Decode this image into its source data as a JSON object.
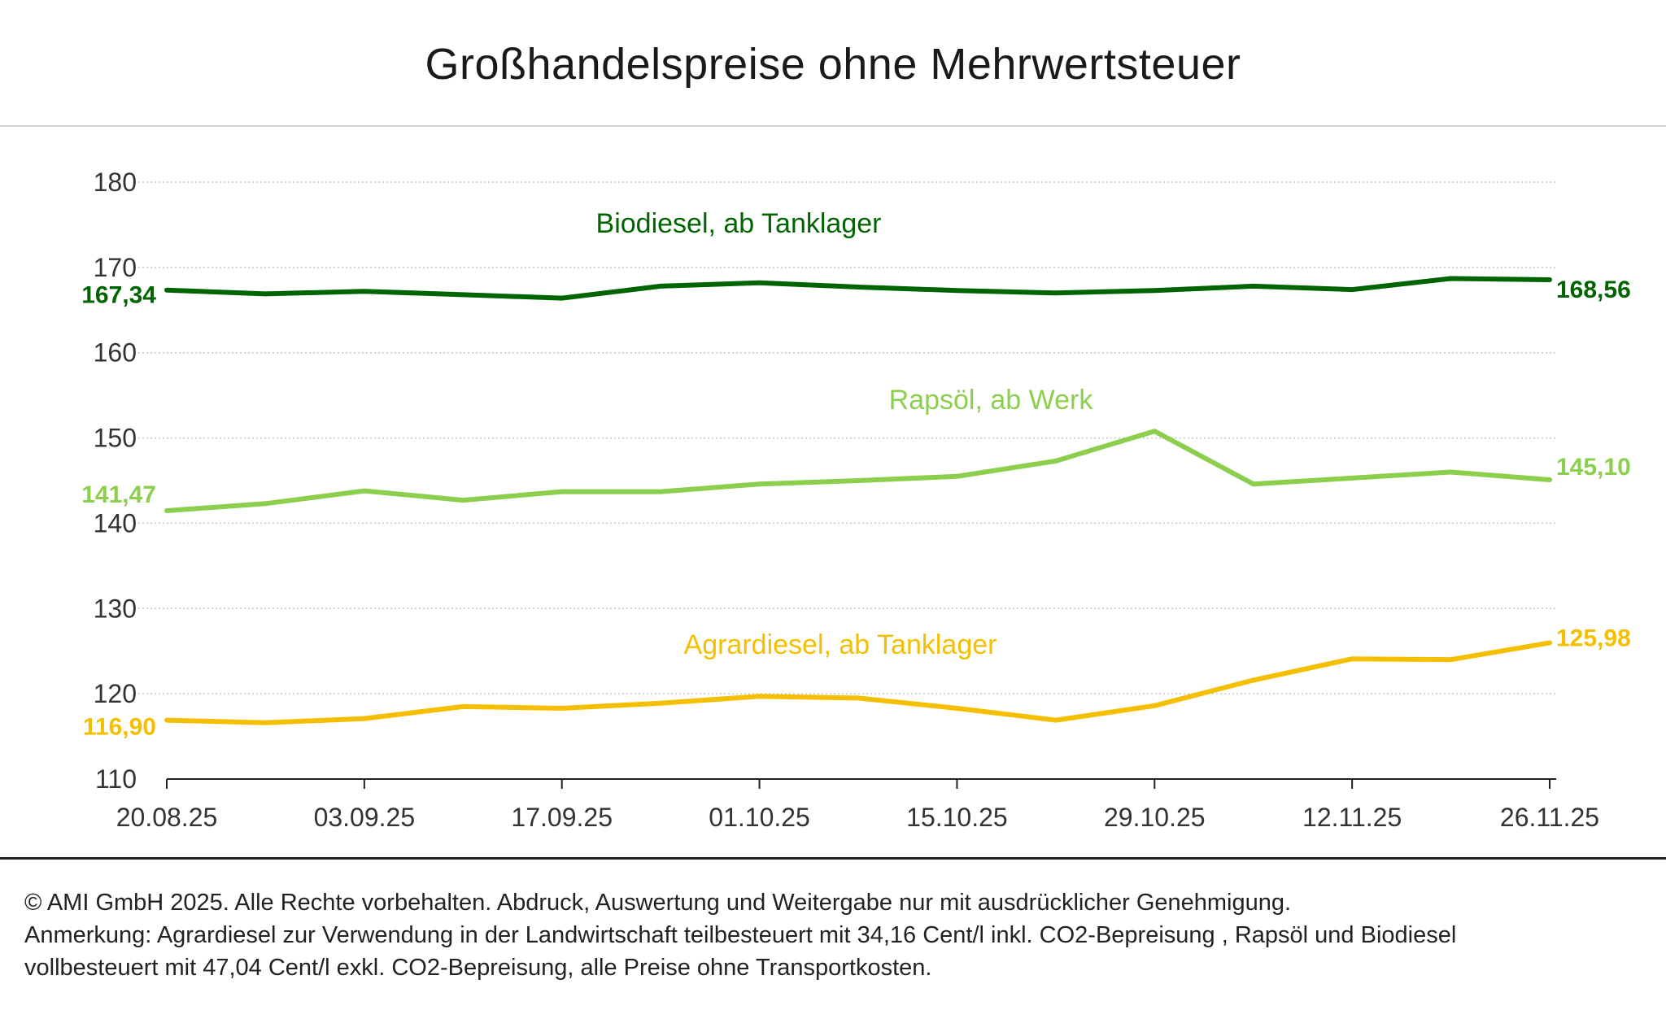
{
  "title": "Großhandelspreise ohne Mehrwertsteuer",
  "chart_data": {
    "type": "line",
    "title": "Großhandelspreise ohne Mehrwertsteuer",
    "xlabel": "",
    "ylabel": "",
    "ylim": [
      110,
      180
    ],
    "yticks": [
      110,
      120,
      130,
      140,
      150,
      160,
      170,
      180
    ],
    "grid": true,
    "x": [
      "20.08.25",
      "27.08.25",
      "03.09.25",
      "10.09.25",
      "17.09.25",
      "24.09.25",
      "01.10.25",
      "08.10.25",
      "15.10.25",
      "22.10.25",
      "29.10.25",
      "05.11.25",
      "12.11.25",
      "19.11.25",
      "26.11.25"
    ],
    "xtick_labels": [
      "20.08.25",
      "03.09.25",
      "17.09.25",
      "01.10.25",
      "15.10.25",
      "29.10.25",
      "12.11.25",
      "26.11.25"
    ],
    "series": [
      {
        "name": "Biodiesel, ab Tanklager",
        "color": "#006400",
        "values": [
          167.34,
          166.9,
          167.2,
          166.8,
          166.4,
          167.8,
          168.2,
          167.7,
          167.3,
          167.0,
          167.3,
          167.8,
          167.4,
          168.7,
          168.56
        ],
        "start_label": "167,34",
        "end_label": "168,56"
      },
      {
        "name": "Rapsöl, ab Werk",
        "color": "#8ccf4d",
        "values": [
          141.47,
          142.3,
          143.8,
          142.7,
          143.7,
          143.7,
          144.6,
          145.0,
          145.5,
          147.3,
          150.8,
          144.6,
          145.3,
          146.0,
          145.1
        ],
        "start_label": "141,47",
        "end_label": "145,10"
      },
      {
        "name": "Agrardiesel, ab Tanklager",
        "color": "#f5bf00",
        "values": [
          116.9,
          116.6,
          117.1,
          118.5,
          118.3,
          118.9,
          119.7,
          119.5,
          118.3,
          116.9,
          118.6,
          121.6,
          124.1,
          124.0,
          125.98
        ],
        "start_label": "116,90",
        "end_label": "125,98"
      }
    ]
  },
  "footer": {
    "copyright": "© AMI GmbH 2025.  Alle Rechte vorbehalten.  Abdruck, Auswertung und Weitergabe nur mit ausdrücklicher Genehmigung.",
    "note_line1": "Anmerkung: Agrardiesel zur Verwendung in der Landwirtschaft teilbesteuert mit 34,16 Cent/l inkl. CO2-Bepreisung , Rapsöl und Biodiesel",
    "note_line2": "vollbesteuert mit 47,04 Cent/l exkl. CO2-Bepreisung, alle Preise ohne Transportkosten."
  }
}
